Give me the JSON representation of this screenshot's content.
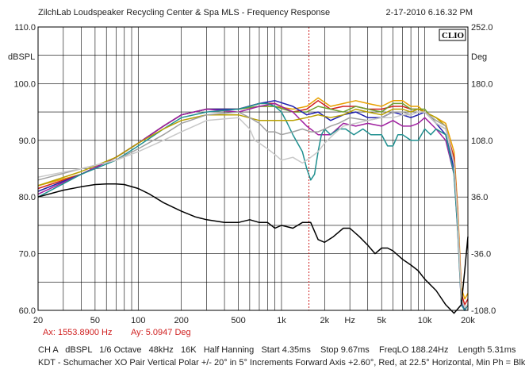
{
  "header": {
    "title": "ZilchLab Loudspeaker Recycling Center & Spa   MLS - Frequency Response",
    "date": "2-17-2010 6.16.32 PM"
  },
  "cursor": {
    "ax": "Ax: 1553.8900 Hz",
    "ay": "Ay: 5.0947 Deg"
  },
  "settings": {
    "line1": "CH A   dBSPL   1/6 Octave   48kHz   16K   Half Hanning   Start 4.35ms    Stop 9.67ms    FreqLO 188.24Hz    Length 5.31ms",
    "line2": "KDT - Schumacher XO Pair Vertical Polar +/- 20° in 5° Increments Forward Axis +2.60°, Red, at 22.5° Horizontal, Min Ph = Blk"
  },
  "chart_data": {
    "type": "line",
    "logo": "CLIO",
    "xscale": "log",
    "xlim": [
      20,
      20000
    ],
    "ylim": [
      60,
      110
    ],
    "y2lim": [
      -108,
      252
    ],
    "ylabel": "dBSPL",
    "y2label": "Deg",
    "xlabel": "Hz",
    "grid": true,
    "xticks": [
      {
        "v": 20,
        "label": "20"
      },
      {
        "v": 50,
        "label": "50"
      },
      {
        "v": 100,
        "label": "100"
      },
      {
        "v": 200,
        "label": "200"
      },
      {
        "v": 500,
        "label": "500"
      },
      {
        "v": 1000,
        "label": "1k"
      },
      {
        "v": 2000,
        "label": "2k"
      },
      {
        "v": 3000,
        "label": "Hz"
      },
      {
        "v": 5000,
        "label": "5k"
      },
      {
        "v": 10000,
        "label": "10k"
      },
      {
        "v": 20000,
        "label": "20k"
      }
    ],
    "yticks": [
      {
        "v": 110,
        "label": "110.0"
      },
      {
        "v": 100,
        "label": "100.0"
      },
      {
        "v": 90,
        "label": "90.0"
      },
      {
        "v": 80,
        "label": "80.0"
      },
      {
        "v": 70,
        "label": "70.0"
      },
      {
        "v": 60,
        "label": "60.0"
      }
    ],
    "y2ticks": [
      {
        "v": 110,
        "label": "252.0"
      },
      {
        "v": 100,
        "label": "180.0"
      },
      {
        "v": 90,
        "label": "108.0"
      },
      {
        "v": 80,
        "label": "36.0"
      },
      {
        "v": 70,
        "label": "-36.0"
      },
      {
        "v": 60,
        "label": "-108.0"
      }
    ],
    "cursor_x": 1553.89,
    "series": [
      {
        "color": "#e8a000",
        "x": [
          20,
          40,
          70,
          100,
          150,
          200,
          300,
          500,
          700,
          900,
          1200,
          1500,
          1800,
          2200,
          2700,
          3300,
          4000,
          5000,
          6000,
          7000,
          8000,
          9000,
          10000,
          12000,
          14000,
          16000,
          17000,
          18000,
          19000,
          20000
        ],
        "y": [
          82,
          84,
          87,
          89.5,
          92.5,
          94.5,
          95.5,
          95.5,
          96,
          96,
          95.5,
          96,
          97.5,
          96,
          96.5,
          97,
          96.5,
          96,
          97,
          97,
          96,
          96,
          95,
          94,
          93,
          88,
          78,
          64,
          62,
          63
        ]
      },
      {
        "color": "#d02020",
        "x": [
          20,
          40,
          70,
          100,
          150,
          200,
          300,
          500,
          700,
          900,
          1200,
          1500,
          1800,
          2200,
          2700,
          3300,
          4000,
          5000,
          6000,
          7000,
          8000,
          9000,
          10000,
          12000,
          14000,
          16000,
          17000,
          18000,
          19000,
          20000
        ],
        "y": [
          81.5,
          84,
          87,
          89.5,
          92.5,
          94.5,
          95.5,
          95.5,
          96.5,
          96.5,
          95,
          95.5,
          97,
          95.5,
          96,
          96,
          95.5,
          95.5,
          96,
          96,
          95.5,
          95.5,
          95,
          93,
          92,
          87,
          77,
          63,
          61,
          62
        ]
      },
      {
        "color": "#70a030",
        "x": [
          20,
          40,
          70,
          100,
          150,
          200,
          300,
          500,
          700,
          900,
          1200,
          1500,
          1800,
          2200,
          2700,
          3300,
          4000,
          5000,
          6000,
          7000,
          8000,
          9000,
          10000,
          12000,
          14000,
          16000,
          17000,
          18000,
          19000,
          20000
        ],
        "y": [
          81,
          84,
          87,
          89.5,
          92.5,
          94.5,
          95.5,
          95.5,
          96,
          96,
          95,
          95,
          96,
          95.5,
          95,
          96,
          95.5,
          95,
          96.5,
          96.5,
          95.5,
          95.5,
          95.5,
          93,
          92,
          86,
          76,
          62,
          60.5,
          61
        ]
      },
      {
        "color": "#2020b0",
        "x": [
          20,
          40,
          70,
          100,
          150,
          200,
          300,
          500,
          700,
          900,
          1200,
          1500,
          1800,
          2200,
          2700,
          3300,
          4000,
          5000,
          6000,
          7000,
          8000,
          9000,
          10000,
          12000,
          14000,
          16000,
          17000,
          18000,
          19000,
          20000
        ],
        "y": [
          81,
          84,
          87,
          89.5,
          92.5,
          94.5,
          95.5,
          95.5,
          96.5,
          97,
          96,
          94.5,
          95,
          93.5,
          94.5,
          95,
          94,
          94,
          95,
          94.5,
          94,
          94.5,
          95,
          93,
          91,
          85,
          75,
          62,
          60,
          61
        ]
      },
      {
        "color": "#a020a0",
        "x": [
          20,
          40,
          70,
          100,
          150,
          200,
          300,
          500,
          700,
          900,
          1200,
          1500,
          1800,
          2200,
          2700,
          3300,
          4000,
          5000,
          6000,
          7000,
          8000,
          9000,
          10000,
          12000,
          14000,
          16000,
          17000,
          18000,
          19000,
          20000
        ],
        "y": [
          80.5,
          84,
          87,
          89.5,
          92.5,
          94.5,
          95.5,
          95,
          96,
          96.5,
          95,
          92.5,
          91,
          91,
          93,
          92.5,
          93,
          92.5,
          93.5,
          92.5,
          92.5,
          93,
          94,
          92,
          90,
          84,
          74,
          61,
          60,
          61
        ]
      },
      {
        "color": "#209090",
        "x": [
          20,
          40,
          70,
          100,
          150,
          200,
          300,
          500,
          600,
          700,
          800,
          900,
          1000,
          1100,
          1200,
          1400,
          1500,
          1600,
          1700,
          1800,
          1900,
          2000,
          2200,
          2500,
          2800,
          3200,
          3700,
          4200,
          5000,
          5500,
          6000,
          6500,
          7000,
          8000,
          9000,
          10000,
          11000,
          12000,
          14000,
          16000,
          17000,
          18000,
          19000,
          20000
        ],
        "y": [
          80,
          84,
          86.5,
          89,
          92,
          94,
          95,
          95.5,
          96,
          96.5,
          96.5,
          96,
          95,
          93,
          91,
          88,
          85,
          83,
          84,
          88,
          91,
          92,
          91,
          92,
          92,
          91,
          92,
          91,
          91,
          89,
          89,
          91,
          91,
          90,
          90,
          92,
          91,
          92,
          91,
          84,
          74,
          61,
          60,
          61
        ]
      },
      {
        "color": "#b8a000",
        "x": [
          20,
          40,
          70,
          100,
          150,
          200,
          300,
          500,
          700,
          900,
          1200,
          1500,
          1800,
          2200,
          2700,
          3300,
          4000,
          5000,
          6000,
          7000,
          8000,
          9000,
          10000,
          12000,
          14000,
          16000,
          17000,
          18000,
          19000,
          20000
        ],
        "y": [
          82,
          84.5,
          87,
          89.5,
          92,
          93.5,
          94.5,
          94.5,
          93.5,
          93.5,
          93.5,
          94,
          94.5,
          94,
          94.5,
          95.5,
          95,
          94.5,
          95.5,
          95.5,
          95,
          95.5,
          95,
          94,
          92.5,
          86,
          76,
          62,
          60.5,
          61
        ]
      },
      {
        "color": "#a0a0a0",
        "x": [
          20,
          40,
          70,
          100,
          150,
          200,
          300,
          500,
          600,
          700,
          800,
          900,
          1000,
          1200,
          1400,
          1600,
          1800,
          2000,
          2200,
          2500,
          3000,
          4000,
          5000,
          6000,
          7000,
          8000,
          9000,
          10000,
          12000,
          14000,
          16000,
          17000,
          18000,
          19000,
          20000
        ],
        "y": [
          83,
          85,
          86.5,
          88.5,
          91,
          93,
          94.5,
          95,
          94,
          93,
          91.5,
          91.5,
          91,
          91.5,
          92,
          91.5,
          91.5,
          92,
          92.5,
          93,
          94,
          93.5,
          94,
          95,
          95,
          94.5,
          95,
          95,
          93.5,
          92.5,
          86,
          76,
          62,
          60.5,
          61
        ]
      },
      {
        "color": "#c8c8c8",
        "x": [
          20,
          40,
          70,
          100,
          150,
          200,
          300,
          500,
          600,
          650,
          700,
          800,
          900,
          1000,
          1200,
          1400,
          1600,
          1800,
          2000,
          2300,
          2700,
          3300,
          4000,
          5000,
          6000,
          7000,
          8000,
          9000,
          10000,
          12000,
          14000,
          16000,
          17000,
          18000,
          19000,
          20000
        ],
        "y": [
          83.5,
          85,
          86.5,
          88,
          90,
          91.5,
          93.5,
          94,
          92,
          90,
          89.5,
          88.5,
          87.5,
          86.5,
          87,
          86,
          87,
          88,
          89.5,
          91,
          92.5,
          93,
          93.5,
          94,
          94,
          94.5,
          94.5,
          95,
          95,
          93,
          92,
          86,
          76,
          62,
          60.5,
          61
        ]
      },
      {
        "color": "#000000",
        "x": [
          20,
          30,
          40,
          50,
          60,
          70,
          80,
          100,
          120,
          150,
          200,
          250,
          300,
          400,
          500,
          600,
          700,
          800,
          900,
          1000,
          1200,
          1400,
          1600,
          1800,
          2000,
          2300,
          2700,
          3000,
          3500,
          4000,
          4500,
          5000,
          5500,
          6000,
          7000,
          8000,
          9000,
          10000,
          12000,
          14000,
          16000,
          18000,
          19000,
          20000
        ],
        "y": [
          80,
          81.2,
          81.8,
          82.2,
          82.3,
          82.3,
          82.2,
          81.5,
          80.5,
          79,
          77.5,
          76.5,
          76,
          75.5,
          75.5,
          76,
          75.5,
          75.5,
          74.5,
          75,
          74.5,
          75.5,
          75.5,
          72.5,
          72,
          73,
          74.5,
          74.5,
          73,
          71.5,
          70,
          71,
          71,
          70.5,
          69,
          68,
          67,
          65.5,
          63.5,
          61,
          59.5,
          61,
          67,
          73
        ]
      }
    ]
  }
}
